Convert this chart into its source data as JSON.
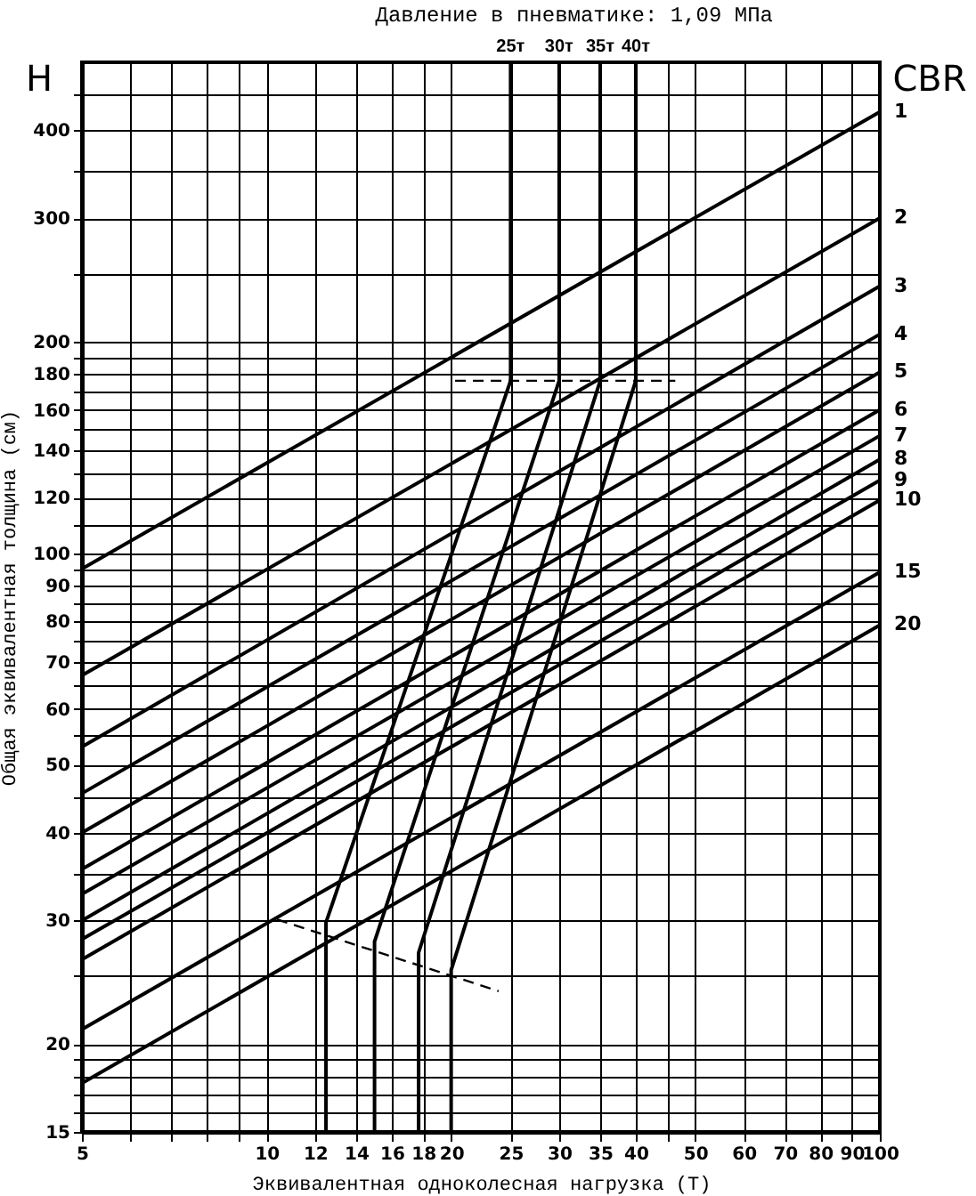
{
  "chart_data": {
    "type": "line",
    "title": "Давление в пневматике: 1,09 МПа",
    "xlabel": "Эквивалентная одноколесная нагрузка (Т)",
    "ylabel": "Общая эквивалентная толщина (см)",
    "annotations": [
      "H",
      "CBR"
    ],
    "log": "xy",
    "grid": true,
    "xlim": [
      5,
      100
    ],
    "ylim": [
      15,
      500
    ],
    "xticks": [
      5,
      {
        "value": 6,
        "label": null
      },
      {
        "value": 7,
        "label": null
      },
      {
        "value": 8,
        "label": null
      },
      {
        "value": 9,
        "label": null
      },
      10,
      12,
      14,
      16,
      18,
      20,
      25,
      30,
      35,
      40,
      {
        "value": 45,
        "label": null
      },
      50,
      60,
      70,
      80,
      90,
      100
    ],
    "yticks": [
      15,
      {
        "value": 16,
        "label": null
      },
      {
        "value": 17,
        "label": null
      },
      {
        "value": 18,
        "label": null
      },
      {
        "value": 19,
        "label": null
      },
      20,
      {
        "value": 25,
        "label": null
      },
      30,
      {
        "value": 35,
        "label": null
      },
      40,
      {
        "value": 45,
        "label": null
      },
      50,
      {
        "value": 55,
        "label": null
      },
      60,
      {
        "value": 65,
        "label": null
      },
      70,
      {
        "value": 75,
        "label": null
      },
      80,
      {
        "value": 85,
        "label": null
      },
      90,
      {
        "value": 95,
        "label": null
      },
      100,
      {
        "value": 110,
        "label": null
      },
      120,
      {
        "value": 130,
        "label": null
      },
      140,
      {
        "value": 150,
        "label": null
      },
      160,
      {
        "value": 170,
        "label": null
      },
      180,
      {
        "value": 190,
        "label": null
      },
      200,
      {
        "value": 250,
        "label": null
      },
      300,
      {
        "value": 350,
        "label": null
      },
      400,
      {
        "value": 450,
        "label": null
      }
    ],
    "series": [
      {
        "name": "1",
        "color": "#000000",
        "x": [
          5,
          100
        ],
        "values": [
          95,
          425
        ]
      },
      {
        "name": "2",
        "color": "#000000",
        "x": [
          5,
          100
        ],
        "values": [
          67,
          300
        ]
      },
      {
        "name": "3",
        "color": "#000000",
        "x": [
          5,
          100
        ],
        "values": [
          53,
          240
        ]
      },
      {
        "name": "4",
        "color": "#000000",
        "x": [
          5,
          100
        ],
        "values": [
          45.5,
          205
        ]
      },
      {
        "name": "5",
        "color": "#000000",
        "x": [
          5,
          100
        ],
        "values": [
          40,
          181
        ]
      },
      {
        "name": "6",
        "color": "#000000",
        "x": [
          5,
          100
        ],
        "values": [
          35.5,
          160
        ]
      },
      {
        "name": "7",
        "color": "#000000",
        "x": [
          5,
          100
        ],
        "values": [
          32.7,
          147
        ]
      },
      {
        "name": "8",
        "color": "#000000",
        "x": [
          5,
          100
        ],
        "values": [
          30,
          136
        ]
      },
      {
        "name": "9",
        "color": "#000000",
        "x": [
          5,
          100
        ],
        "values": [
          28.2,
          127
        ]
      },
      {
        "name": "10",
        "color": "#000000",
        "x": [
          5,
          100
        ],
        "values": [
          26.4,
          119
        ]
      },
      {
        "name": "15",
        "color": "#000000",
        "x": [
          5,
          100
        ],
        "values": [
          21,
          94
        ]
      },
      {
        "name": "20",
        "color": "#000000",
        "x": [
          5,
          100
        ],
        "values": [
          17.6,
          79
        ]
      },
      {
        "name": "25т",
        "color": "#000000",
        "x": [
          12.5,
          12.5,
          25,
          25
        ],
        "values": [
          15,
          29.8,
          176,
          500
        ]
      },
      {
        "name": "30т",
        "color": "#000000",
        "x": [
          15,
          15,
          30,
          30
        ],
        "values": [
          15,
          28,
          176,
          500
        ]
      },
      {
        "name": "35т",
        "color": "#000000",
        "x": [
          17.7,
          17.7,
          35,
          35
        ],
        "values": [
          15,
          27,
          176,
          500
        ]
      },
      {
        "name": "40т",
        "color": "#000000",
        "x": [
          20,
          20,
          40,
          40
        ],
        "values": [
          15,
          25.5,
          176,
          500
        ]
      },
      {
        "color": "#000000",
        "line_style": "dashed",
        "x": [
          20.3,
          46.4
        ],
        "values": [
          176,
          176
        ]
      },
      {
        "color": "#000000",
        "line_style": "dashed",
        "x": [
          10.4,
          23.9
        ],
        "values": [
          30.1,
          23.8
        ]
      }
    ]
  }
}
